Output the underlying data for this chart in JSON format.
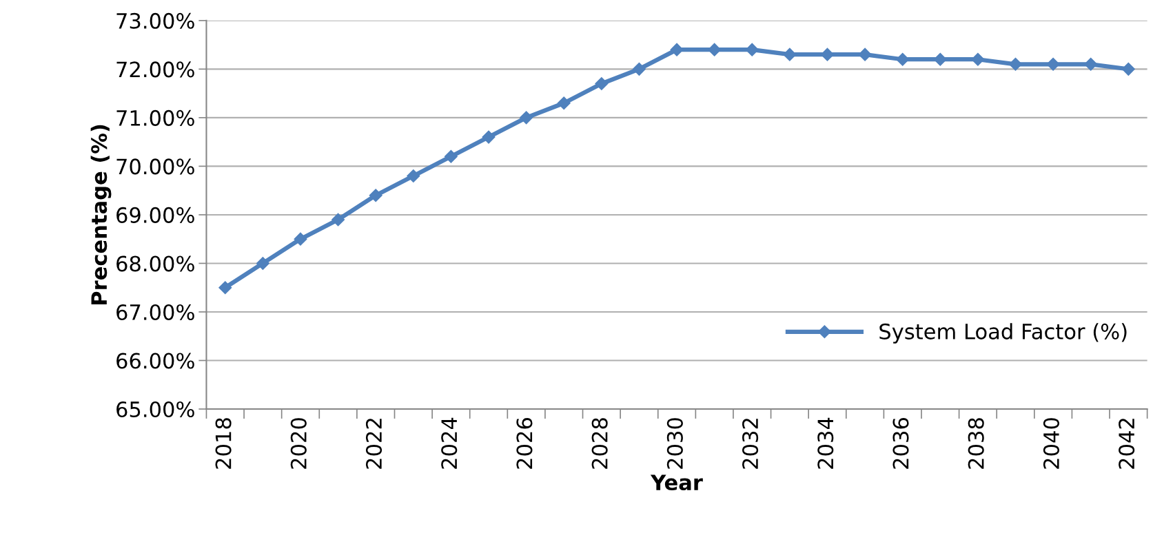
{
  "chart_data": {
    "type": "line",
    "xlabel": "Year",
    "ylabel": "Precentage (%)",
    "categories": [
      "2018",
      null,
      "2020",
      null,
      "2022",
      null,
      "2024",
      null,
      "2026",
      null,
      "2028",
      null,
      "2030",
      null,
      "2032",
      null,
      "2034",
      null,
      "2036",
      null,
      "2038",
      null,
      "2040",
      null,
      "2042"
    ],
    "series": [
      {
        "name": "System Load Factor (%)",
        "color": "#4f81bd",
        "values": [
          67.5,
          68.0,
          68.5,
          68.9,
          69.4,
          69.8,
          70.2,
          70.6,
          71.0,
          71.3,
          71.7,
          72.0,
          72.4,
          72.4,
          72.4,
          72.3,
          72.3,
          72.3,
          72.2,
          72.2,
          72.2,
          72.1,
          72.1,
          72.1,
          72.0
        ]
      }
    ],
    "ylim": [
      65,
      73
    ],
    "yticks": [
      {
        "value": 65,
        "label": "65.00%"
      },
      {
        "value": 66,
        "label": "66.00%"
      },
      {
        "value": 67,
        "label": "67.00%"
      },
      {
        "value": 68,
        "label": "68.00%"
      },
      {
        "value": 69,
        "label": "69.00%"
      },
      {
        "value": 70,
        "label": "70.00%"
      },
      {
        "value": 71,
        "label": "71.00%"
      },
      {
        "value": 72,
        "label": "72.00%"
      },
      {
        "value": 73,
        "label": "73.00%"
      }
    ],
    "grid": "y",
    "legend": "lower right",
    "marker": "diamond",
    "line_style": "solid"
  }
}
